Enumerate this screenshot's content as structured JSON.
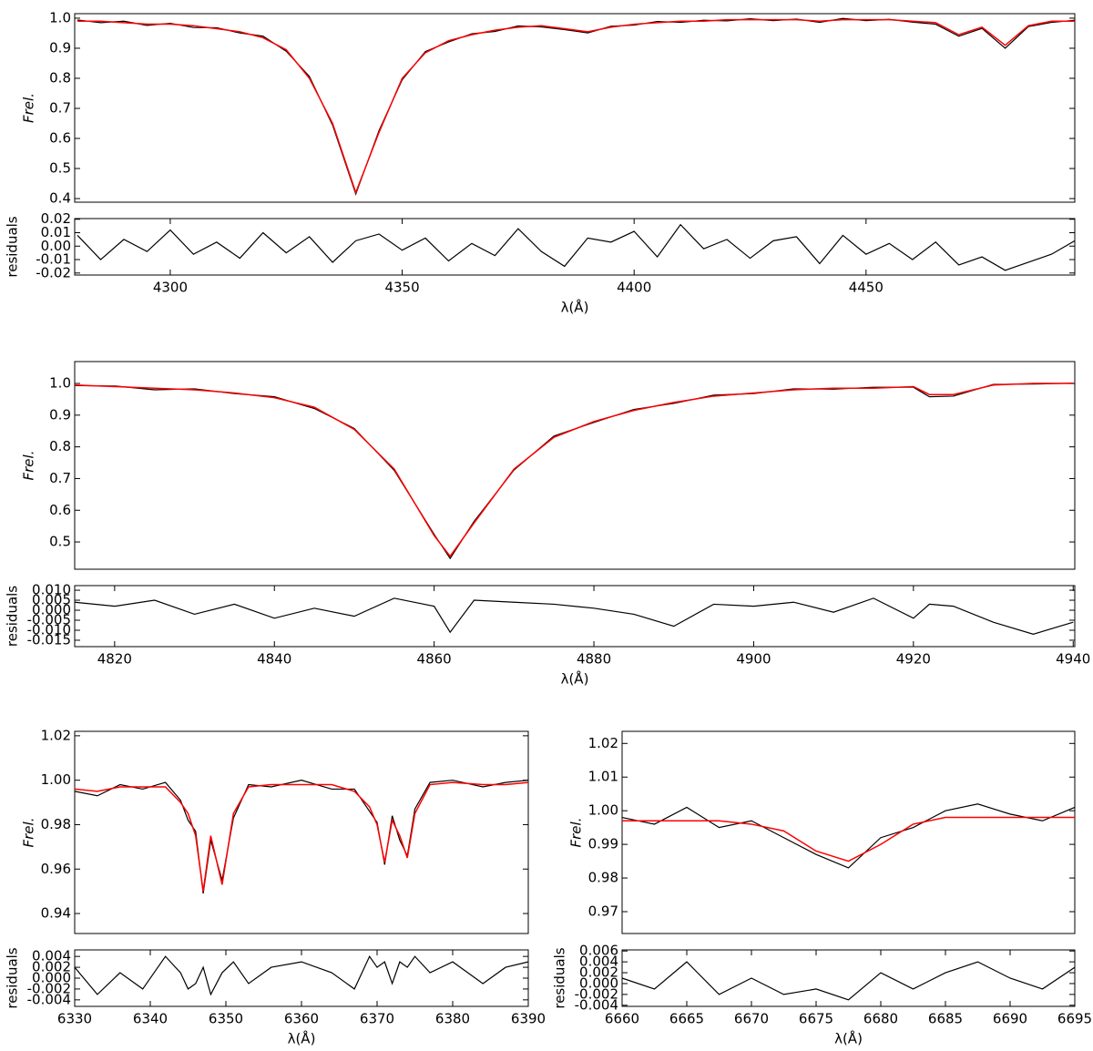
{
  "chart_data": [
    {
      "type": "line",
      "ylabel": "Frel.",
      "xlim": [
        4279.4,
        4495
      ],
      "ylim": [
        0.388,
        1.015
      ],
      "yticks": [
        0.4,
        0.5,
        0.6,
        0.7,
        0.8,
        0.9,
        {
          "value": 1,
          "label": "1.0"
        }
      ],
      "x": [
        4280,
        4285,
        4290,
        4295,
        4300,
        4305,
        4310,
        4315,
        4320,
        4325,
        4330,
        4335,
        4340,
        4345,
        4350,
        4355,
        4360,
        4365,
        4370,
        4375,
        4380,
        4385,
        4390,
        4395,
        4400,
        4405,
        4410,
        4415,
        4420,
        4425,
        4430,
        4435,
        4440,
        4445,
        4450,
        4455,
        4460,
        4465,
        4470,
        4475,
        4480,
        4485,
        4490,
        4495
      ],
      "series": [
        {
          "color": "#000000",
          "values": [
            0.994,
            0.985,
            0.99,
            0.976,
            0.983,
            0.969,
            0.968,
            0.951,
            0.94,
            0.89,
            0.806,
            0.644,
            0.415,
            0.626,
            0.795,
            0.889,
            0.921,
            0.948,
            0.956,
            0.974,
            0.971,
            0.962,
            0.951,
            0.973,
            0.977,
            0.989,
            0.986,
            0.993,
            0.991,
            0.998,
            0.992,
            0.997,
            0.986,
            0.999,
            0.992,
            0.996,
            0.987,
            0.98,
            0.94,
            0.966,
            0.9,
            0.972,
            0.986,
            0.993
          ]
        },
        {
          "color": "#ff0000",
          "values": [
            0.99,
            0.99,
            0.985,
            0.98,
            0.98,
            0.975,
            0.965,
            0.955,
            0.935,
            0.895,
            0.8,
            0.65,
            0.42,
            0.62,
            0.8,
            0.885,
            0.925,
            0.945,
            0.96,
            0.97,
            0.975,
            0.965,
            0.955,
            0.97,
            0.98,
            0.985,
            0.99,
            0.99,
            0.995,
            0.995,
            0.995,
            0.995,
            0.99,
            0.995,
            0.995,
            0.995,
            0.99,
            0.985,
            0.945,
            0.97,
            0.91,
            0.975,
            0.99,
            0.99
          ]
        }
      ]
    },
    {
      "type": "line",
      "ylabel": "residuals",
      "xlabel": "λ(Å)",
      "xlim": [
        4279.4,
        4495
      ],
      "ylim": [
        -0.0215,
        0.0205
      ],
      "xticks": [
        4300,
        4350,
        4400,
        4450
      ],
      "yticks": [
        -0.02,
        -0.01,
        {
          "value": 0,
          "label": "0.00"
        },
        0.01,
        0.02
      ],
      "x": [
        4280,
        4285,
        4290,
        4295,
        4300,
        4305,
        4310,
        4315,
        4320,
        4325,
        4330,
        4335,
        4340,
        4345,
        4350,
        4355,
        4360,
        4365,
        4370,
        4375,
        4380,
        4385,
        4390,
        4395,
        4400,
        4405,
        4410,
        4415,
        4420,
        4425,
        4430,
        4435,
        4440,
        4445,
        4450,
        4455,
        4460,
        4465,
        4470,
        4475,
        4480,
        4485,
        4490,
        4495
      ],
      "series": [
        {
          "color": "#000000",
          "values": [
            0.008,
            -0.01,
            0.005,
            -0.004,
            0.012,
            -0.006,
            0.003,
            -0.009,
            0.01,
            -0.005,
            0.007,
            -0.012,
            0.004,
            0.009,
            -0.003,
            0.006,
            -0.011,
            0.002,
            -0.007,
            0.013,
            -0.004,
            -0.015,
            0.006,
            0.003,
            0.011,
            -0.008,
            0.016,
            -0.002,
            0.005,
            -0.009,
            0.004,
            0.007,
            -0.013,
            0.008,
            -0.006,
            0.002,
            -0.01,
            0.003,
            -0.014,
            -0.008,
            -0.018,
            -0.012,
            -0.006,
            0.004
          ]
        }
      ]
    },
    {
      "type": "line",
      "ylabel": "Frel.",
      "xlim": [
        4815,
        4940.2
      ],
      "ylim": [
        0.414,
        1.069
      ],
      "yticks": [
        0.5,
        0.6,
        0.7,
        0.8,
        0.9,
        {
          "value": 1,
          "label": "1.0"
        }
      ],
      "x": [
        4815,
        4820,
        4825,
        4830,
        4835,
        4840,
        4845,
        4850,
        4855,
        4860,
        4862,
        4865,
        4870,
        4875,
        4880,
        4885,
        4890,
        4895,
        4900,
        4905,
        4910,
        4915,
        4920,
        4922,
        4925,
        4930,
        4935,
        4940
      ],
      "series": [
        {
          "color": "#000000",
          "values": [
            0.993,
            0.992,
            0.98,
            0.983,
            0.968,
            0.958,
            0.921,
            0.858,
            0.726,
            0.524,
            0.448,
            0.565,
            0.727,
            0.834,
            0.877,
            0.918,
            0.937,
            0.963,
            0.968,
            0.983,
            0.982,
            0.988,
            0.988,
            0.958,
            0.96,
            0.997,
            0.998,
            1.001
          ]
        },
        {
          "color": "#ff0000",
          "values": [
            0.995,
            0.99,
            0.985,
            0.98,
            0.97,
            0.955,
            0.925,
            0.855,
            0.73,
            0.52,
            0.455,
            0.56,
            0.73,
            0.83,
            0.88,
            0.915,
            0.94,
            0.96,
            0.97,
            0.98,
            0.985,
            0.985,
            0.99,
            0.965,
            0.965,
            0.995,
            1.0,
            1.0
          ]
        }
      ]
    },
    {
      "type": "line",
      "ylabel": "residuals",
      "xlabel": "λ(Å)",
      "xlim": [
        4815,
        4940.2
      ],
      "ylim": [
        -0.0182,
        0.0123
      ],
      "xticks": [
        4820,
        4840,
        4860,
        4880,
        4900,
        4920,
        4940
      ],
      "yticks": [
        -0.015,
        {
          "value": -0.01,
          "label": "-0.010"
        },
        -0.005,
        {
          "value": 0,
          "label": "0.000"
        },
        0.005,
        {
          "value": 0.01,
          "label": "0.010"
        }
      ],
      "x": [
        4815,
        4820,
        4825,
        4830,
        4835,
        4840,
        4845,
        4850,
        4855,
        4860,
        4862,
        4865,
        4870,
        4875,
        4880,
        4885,
        4890,
        4895,
        4900,
        4905,
        4910,
        4915,
        4920,
        4922,
        4925,
        4930,
        4935,
        4940
      ],
      "series": [
        {
          "color": "#000000",
          "values": [
            0.004,
            0.002,
            0.005,
            -0.002,
            0.003,
            -0.004,
            0.001,
            -0.003,
            0.006,
            0.002,
            -0.011,
            0.005,
            0.004,
            0.003,
            0.001,
            -0.002,
            -0.008,
            0.003,
            0.002,
            0.004,
            -0.001,
            0.006,
            -0.004,
            0.003,
            0.002,
            -0.006,
            -0.012,
            -0.006
          ]
        }
      ]
    },
    {
      "type": "line",
      "ylabel": "Frel.",
      "xlim": [
        6330,
        6390
      ],
      "ylim": [
        0.931,
        1.022
      ],
      "yticks": [
        0.94,
        0.96,
        0.98,
        {
          "value": 1,
          "label": "1.00"
        },
        1.02
      ],
      "x": [
        6330,
        6333,
        6336,
        6339,
        6342,
        6344,
        6345,
        6346,
        6347,
        6348,
        6349.5,
        6351,
        6353,
        6356,
        6360,
        6364,
        6367,
        6369,
        6370,
        6371,
        6372,
        6373,
        6374,
        6375,
        6377,
        6380,
        6384,
        6387,
        6390
      ],
      "series": [
        {
          "color": "#000000",
          "values": [
            0.995,
            0.993,
            0.998,
            0.996,
            0.999,
            0.991,
            0.982,
            0.977,
            0.949,
            0.973,
            0.955,
            0.983,
            0.998,
            0.997,
            1.0,
            0.996,
            0.996,
            0.986,
            0.981,
            0.962,
            0.984,
            0.973,
            0.966,
            0.987,
            0.999,
            1.0,
            0.997,
            0.999,
            1.0
          ]
        },
        {
          "color": "#ff0000",
          "values": [
            0.996,
            0.995,
            0.997,
            0.997,
            0.997,
            0.99,
            0.985,
            0.975,
            0.95,
            0.975,
            0.953,
            0.985,
            0.997,
            0.998,
            0.998,
            0.998,
            0.995,
            0.988,
            0.98,
            0.963,
            0.982,
            0.975,
            0.965,
            0.985,
            0.998,
            0.999,
            0.998,
            0.998,
            0.999
          ]
        }
      ]
    },
    {
      "type": "line",
      "ylabel": "residuals",
      "xlabel": "λ(Å)",
      "xlim": [
        6330,
        6390
      ],
      "ylim": [
        -0.0052,
        0.0052
      ],
      "xticks": [
        6330,
        6340,
        6350,
        6360,
        6370,
        6380,
        6390
      ],
      "yticks": [
        -0.004,
        -0.002,
        {
          "value": 0,
          "label": "0.000"
        },
        0.002,
        0.004
      ],
      "x": [
        6330,
        6333,
        6336,
        6339,
        6342,
        6344,
        6345,
        6346,
        6347,
        6348,
        6349.5,
        6351,
        6353,
        6356,
        6360,
        6364,
        6367,
        6369,
        6370,
        6371,
        6372,
        6373,
        6374,
        6375,
        6377,
        6380,
        6384,
        6387,
        6390
      ],
      "series": [
        {
          "color": "#000000",
          "values": [
            0.002,
            -0.003,
            0.001,
            -0.002,
            0.004,
            0.001,
            -0.002,
            -0.001,
            0.002,
            -0.003,
            0.001,
            0.003,
            -0.001,
            0.002,
            0.003,
            0.001,
            -0.002,
            0.004,
            0.002,
            0.003,
            -0.001,
            0.003,
            0.002,
            0.004,
            0.001,
            0.003,
            -0.001,
            0.002,
            0.003
          ]
        }
      ]
    },
    {
      "type": "line",
      "ylabel": "Frel.",
      "xlim": [
        6660,
        6695
      ],
      "ylim": [
        0.9635,
        1.0236
      ],
      "yticks": [
        0.97,
        0.98,
        0.99,
        {
          "value": 1,
          "label": "1.00"
        },
        1.01,
        1.02
      ],
      "x": [
        6660,
        6662.5,
        6665,
        6667.5,
        6670,
        6672.5,
        6675,
        6677.5,
        6680,
        6682.5,
        6685,
        6687.5,
        6690,
        6692.5,
        6695
      ],
      "series": [
        {
          "color": "#000000",
          "values": [
            0.998,
            0.996,
            1.001,
            0.995,
            0.997,
            0.992,
            0.987,
            0.983,
            0.992,
            0.995,
            1.0,
            1.002,
            0.999,
            0.997,
            1.001
          ]
        },
        {
          "color": "#ff0000",
          "values": [
            0.997,
            0.997,
            0.997,
            0.997,
            0.996,
            0.994,
            0.988,
            0.985,
            0.99,
            0.996,
            0.998,
            0.998,
            0.998,
            0.998,
            0.998
          ]
        }
      ]
    },
    {
      "type": "line",
      "ylabel": "residuals",
      "xlabel": "λ(Å)",
      "xlim": [
        6660,
        6695
      ],
      "ylim": [
        -0.0042,
        0.0062
      ],
      "xticks": [
        6660,
        6665,
        6670,
        6675,
        6680,
        6685,
        6690,
        6695
      ],
      "yticks": [
        -0.004,
        -0.002,
        {
          "value": 0,
          "label": "0.000"
        },
        0.002,
        0.004,
        0.006
      ],
      "x": [
        6660,
        6662.5,
        6665,
        6667.5,
        6670,
        6672.5,
        6675,
        6677.5,
        6680,
        6682.5,
        6685,
        6687.5,
        6690,
        6692.5,
        6695
      ],
      "series": [
        {
          "color": "#000000",
          "values": [
            0.001,
            -0.001,
            0.004,
            -0.002,
            0.001,
            -0.002,
            -0.001,
            -0.003,
            0.002,
            -0.001,
            0.002,
            0.004,
            0.001,
            -0.001,
            0.003
          ]
        }
      ]
    }
  ]
}
